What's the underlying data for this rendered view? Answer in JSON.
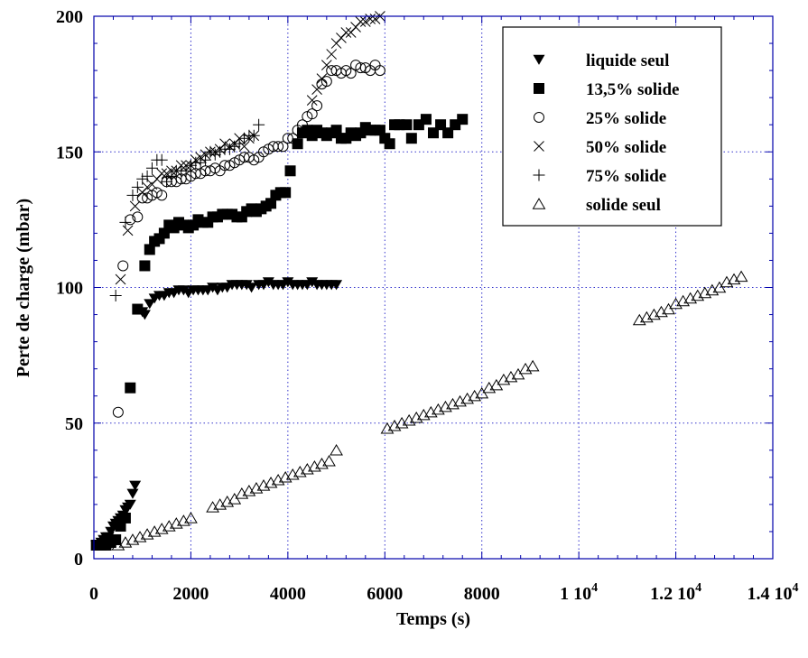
{
  "chart_data": {
    "type": "scatter",
    "title": "",
    "xlabel": "Temps (s)",
    "ylabel": "Perte de charge (mbar)",
    "xlim": [
      0,
      14000
    ],
    "ylim": [
      0,
      200
    ],
    "x_ticks": [
      0,
      2000,
      4000,
      6000,
      8000,
      10000,
      12000,
      14000
    ],
    "x_tick_labels": [
      "0",
      "2000",
      "4000",
      "6000",
      "8000",
      "1 10",
      "1.2 10",
      "1.4 10"
    ],
    "x_tick_exponents": [
      "",
      "",
      "",
      "",
      "",
      "4",
      "4",
      "4"
    ],
    "y_ticks": [
      0,
      50,
      100,
      150,
      200
    ],
    "y_tick_labels": [
      "0",
      "50",
      "100",
      "150",
      "200"
    ],
    "grid": true,
    "grid_color": "#3333cc",
    "axis_color": "#0000aa",
    "legend_position": "top-right",
    "series": [
      {
        "name": "liquide seul",
        "marker": "triangle-down-filled",
        "x": [
          50,
          100,
          150,
          200,
          250,
          300,
          350,
          400,
          450,
          500,
          550,
          600,
          650,
          700,
          750,
          800,
          850,
          1000,
          1050,
          1150,
          1250,
          1350,
          1450,
          1550,
          1650,
          1750,
          1850,
          1950,
          2050,
          2150,
          2250,
          2350,
          2450,
          2550,
          2650,
          2750,
          2850,
          2950,
          3050,
          3150,
          3250,
          3400,
          3500,
          3600,
          3700,
          3800,
          3900,
          4000,
          4100,
          4200,
          4300,
          4400,
          4500,
          4600,
          4700,
          4800,
          4900,
          5000
        ],
        "y": [
          5,
          5,
          6,
          7,
          8,
          8,
          10,
          12,
          13,
          14,
          15,
          16,
          18,
          19,
          20,
          24,
          27,
          91,
          90,
          94,
          96,
          97,
          97,
          98,
          98,
          99,
          99,
          98,
          99,
          99,
          99,
          99,
          100,
          99,
          100,
          100,
          101,
          101,
          101,
          101,
          100,
          101,
          101,
          102,
          101,
          101,
          101,
          102,
          101,
          101,
          101,
          101,
          102,
          101,
          101,
          101,
          101,
          101
        ]
      },
      {
        "name": "13,5% solide",
        "marker": "square-filled",
        "x": [
          50,
          150,
          250,
          350,
          450,
          550,
          650,
          750,
          900,
          1050,
          1150,
          1250,
          1350,
          1450,
          1550,
          1650,
          1750,
          1850,
          1950,
          2050,
          2150,
          2250,
          2350,
          2450,
          2550,
          2650,
          2750,
          2850,
          2950,
          3050,
          3150,
          3250,
          3350,
          3450,
          3550,
          3650,
          3750,
          3850,
          3950,
          4050,
          4200,
          4300,
          4400,
          4500,
          4600,
          4700,
          4800,
          4900,
          5000,
          5100,
          5200,
          5300,
          5400,
          5500,
          5600,
          5700,
          5800,
          5900,
          6000,
          6100,
          6200,
          6300,
          6450,
          6550,
          6700,
          6850,
          7000,
          7150,
          7300,
          7450,
          7600
        ],
        "y": [
          5,
          5,
          5,
          6,
          7,
          12,
          15,
          63,
          92,
          108,
          114,
          117,
          118,
          120,
          123,
          122,
          124,
          123,
          122,
          123,
          125,
          124,
          124,
          126,
          126,
          127,
          127,
          127,
          126,
          126,
          128,
          129,
          128,
          129,
          130,
          131,
          134,
          135,
          135,
          143,
          153,
          157,
          158,
          156,
          158,
          157,
          156,
          157,
          158,
          155,
          155,
          157,
          156,
          157,
          159,
          158,
          158,
          158,
          155,
          153,
          160,
          160,
          160,
          155,
          160,
          162,
          157,
          160,
          157,
          160,
          162
        ]
      },
      {
        "name": "25% solide",
        "marker": "circle-open",
        "x": [
          500,
          600,
          750,
          900,
          1000,
          1100,
          1200,
          1300,
          1400,
          1500,
          1600,
          1700,
          1800,
          1900,
          2000,
          2100,
          2200,
          2300,
          2400,
          2500,
          2600,
          2700,
          2800,
          2900,
          3000,
          3100,
          3200,
          3300,
          3400,
          3500,
          3600,
          3700,
          3800,
          3900,
          4000,
          4100,
          4200,
          4300,
          4400,
          4500,
          4600,
          4700,
          4800,
          4900,
          5000,
          5100,
          5200,
          5300,
          5400,
          5500,
          5600,
          5700,
          5800,
          5900
        ],
        "y": [
          54,
          108,
          125,
          126,
          133,
          133,
          134,
          135,
          134,
          139,
          139,
          139,
          140,
          140,
          141,
          142,
          142,
          143,
          143,
          144,
          143,
          145,
          145,
          146,
          147,
          148,
          148,
          147,
          148,
          150,
          151,
          152,
          152,
          152,
          155,
          155,
          158,
          160,
          163,
          164,
          167,
          175,
          176,
          180,
          180,
          179,
          180,
          179,
          182,
          181,
          181,
          180,
          182,
          180
        ]
      },
      {
        "name": "50% solide",
        "marker": "x",
        "x": [
          550,
          700,
          850,
          1000,
          1100,
          1200,
          1300,
          1400,
          1500,
          1600,
          1700,
          1800,
          1900,
          2000,
          2100,
          2200,
          2300,
          2400,
          2500,
          2600,
          2700,
          2800,
          2900,
          3000,
          3100,
          3200,
          3300,
          4500,
          4600,
          4700,
          4800,
          4900,
          5000,
          5100,
          5200,
          5300,
          5400,
          5500,
          5600,
          5700,
          5800,
          5900
        ],
        "y": [
          103,
          121,
          130,
          135,
          137,
          138,
          140,
          142,
          142,
          143,
          143,
          145,
          145,
          145,
          147,
          148,
          149,
          150,
          150,
          151,
          153,
          152,
          153,
          155,
          152,
          155,
          156,
          169,
          173,
          177,
          182,
          186,
          190,
          192,
          194,
          194,
          196,
          198,
          198,
          199,
          199,
          200
        ]
      },
      {
        "name": "75% solide",
        "marker": "plus",
        "x": [
          450,
          650,
          800,
          900,
          1000,
          1100,
          1200,
          1300,
          1400,
          1500,
          1600,
          1700,
          1800,
          1900,
          2000,
          2100,
          2200,
          2300,
          2400,
          2500,
          2600,
          2700,
          2800,
          2900,
          3000,
          3100,
          3200,
          3300,
          3400
        ],
        "y": [
          97,
          124,
          134,
          137,
          140,
          141,
          144,
          147,
          147,
          139,
          141,
          143,
          143,
          143,
          145,
          146,
          146,
          147,
          150,
          149,
          150,
          151,
          151,
          152,
          153,
          155,
          156,
          156,
          160
        ]
      },
      {
        "name": "solide seul",
        "marker": "triangle-up-open",
        "x": [
          500,
          650,
          800,
          950,
          1100,
          1250,
          1400,
          1550,
          1700,
          1850,
          2000,
          2450,
          2600,
          2750,
          2900,
          3050,
          3200,
          3350,
          3500,
          3650,
          3800,
          3950,
          4100,
          4250,
          4400,
          4550,
          4700,
          4850,
          5000,
          6050,
          6200,
          6350,
          6500,
          6650,
          6800,
          6950,
          7100,
          7250,
          7400,
          7550,
          7700,
          7850,
          8000,
          8150,
          8300,
          8450,
          8600,
          8750,
          8900,
          9050,
          11250,
          11400,
          11550,
          11700,
          11850,
          12000,
          12150,
          12300,
          12450,
          12600,
          12750,
          12900,
          13050,
          13200,
          13350
        ],
        "y": [
          5,
          6,
          7,
          8,
          9,
          10,
          11,
          12,
          13,
          14,
          15,
          19,
          20,
          21,
          22,
          24,
          25,
          26,
          27,
          28,
          29,
          30,
          31,
          32,
          33,
          34,
          35,
          36,
          40,
          48,
          49,
          50,
          51,
          52,
          53,
          54,
          55,
          56,
          57,
          58,
          59,
          60,
          61,
          63,
          64,
          66,
          67,
          68,
          70,
          71,
          88,
          89,
          90,
          91,
          92,
          94,
          95,
          96,
          97,
          98,
          99,
          100,
          102,
          103,
          104
        ]
      }
    ]
  }
}
